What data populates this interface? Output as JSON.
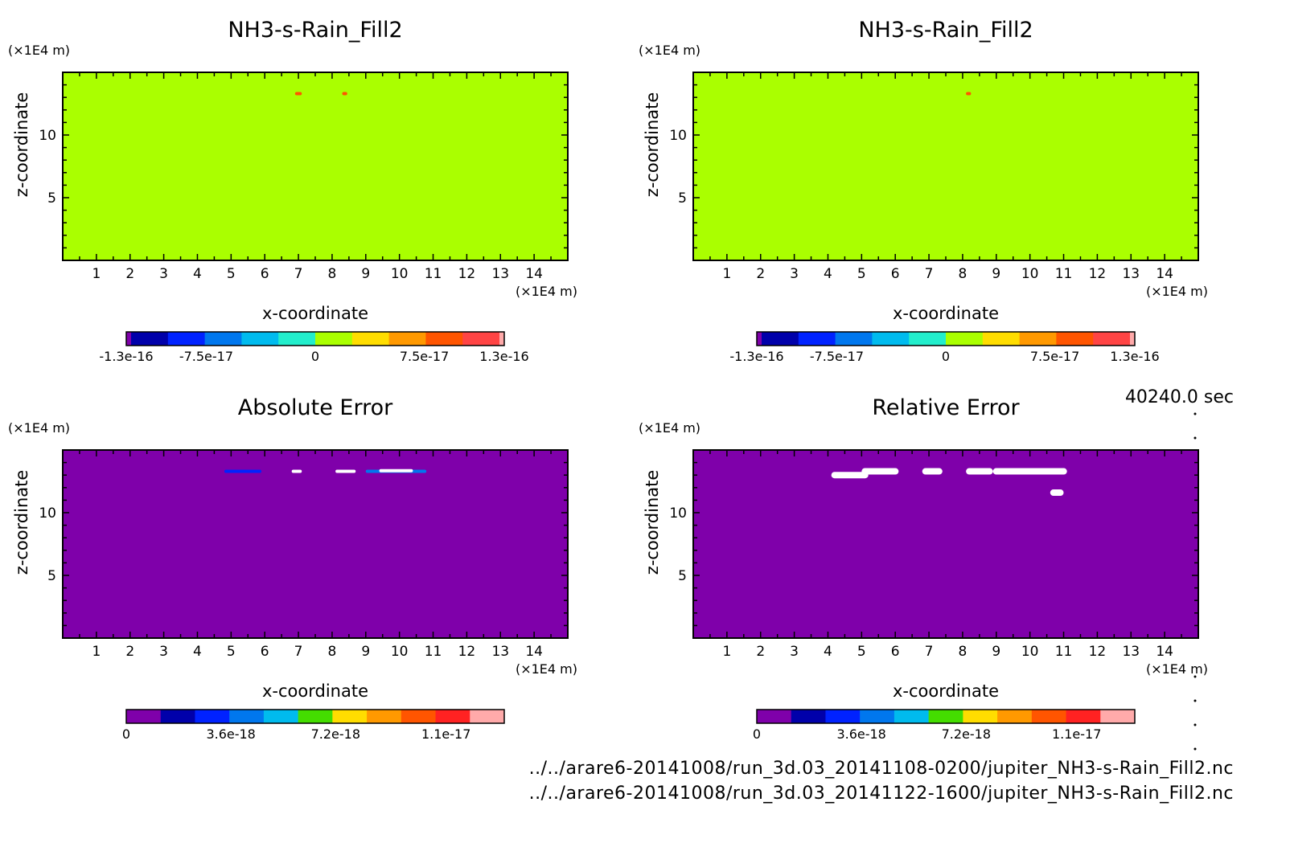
{
  "time_label": "40240.0 sec",
  "files": [
    "../../arare6-20141008/run_3d.03_20141108-0200/jupiter_NH3-s-Rain_Fill2.nc",
    "../../arare6-20141008/run_3d.03_20141122-1600/jupiter_NH3-s-Rain_Fill2.nc"
  ],
  "colors": {
    "purple": "#7f00aa",
    "navy": "#0000aa",
    "blue": "#0022ff",
    "azure": "#0077ee",
    "sky": "#00bbee",
    "cyan": "#22eecc",
    "lime": "#aaff00",
    "green": "#44dd00",
    "yellow": "#ffdd00",
    "orange": "#ff9900",
    "redorange": "#ff5500",
    "red": "#ff2222",
    "redpink": "#ff4444",
    "pink": "#ffaaaa",
    "white": "#ffffff"
  },
  "chart_data": [
    {
      "type": "heatmap",
      "title": "NH3-s-Rain_Fill2",
      "xlabel": "x-coordinate",
      "ylabel": "z-coordinate",
      "x_unit": "(×1E4 m)",
      "y_unit": "(×1E4 m)",
      "xlim": [
        0,
        15
      ],
      "ylim": [
        0,
        15
      ],
      "x_ticks": [
        1,
        2,
        3,
        4,
        5,
        6,
        7,
        8,
        9,
        10,
        11,
        12,
        13,
        14
      ],
      "y_ticks": [
        5,
        10
      ],
      "background_color": "#aaff00",
      "features": [
        {
          "x": [
            6.9,
            7.1
          ],
          "z": 13.3,
          "color": "#ff5500"
        },
        {
          "x": [
            8.3,
            8.45
          ],
          "z": 13.3,
          "color": "#ff5500"
        }
      ],
      "colorbar": {
        "colors": [
          "#7f00aa",
          "#0000aa",
          "#0022ff",
          "#0077ee",
          "#00bbee",
          "#22eecc",
          "#aaff00",
          "#ffdd00",
          "#ff9900",
          "#ff5500",
          "#ff4444",
          "#ffaaaa"
        ],
        "tick_labels": [
          "-1.3e-16",
          "-7.5e-17",
          "0",
          "7.5e-17",
          "1.3e-16"
        ],
        "tick_values": [
          -1.3e-16,
          -7.5e-17,
          0,
          7.5e-17,
          1.3e-16
        ],
        "range": [
          -1.3e-16,
          1.3e-16
        ]
      }
    },
    {
      "type": "heatmap",
      "title": "NH3-s-Rain_Fill2",
      "xlabel": "x-coordinate",
      "ylabel": "z-coordinate",
      "x_unit": "(×1E4 m)",
      "y_unit": "(×1E4 m)",
      "xlim": [
        0,
        15
      ],
      "ylim": [
        0,
        15
      ],
      "x_ticks": [
        1,
        2,
        3,
        4,
        5,
        6,
        7,
        8,
        9,
        10,
        11,
        12,
        13,
        14
      ],
      "y_ticks": [
        5,
        10
      ],
      "background_color": "#aaff00",
      "features": [
        {
          "x": [
            8.1,
            8.25
          ],
          "z": 13.3,
          "color": "#ff5500"
        }
      ],
      "colorbar": {
        "colors": [
          "#7f00aa",
          "#0000aa",
          "#0022ff",
          "#0077ee",
          "#00bbee",
          "#22eecc",
          "#aaff00",
          "#ffdd00",
          "#ff9900",
          "#ff5500",
          "#ff4444",
          "#ffaaaa"
        ],
        "tick_labels": [
          "-1.3e-16",
          "-7.5e-17",
          "0",
          "7.5e-17",
          "1.3e-16"
        ],
        "tick_values": [
          -1.3e-16,
          -7.5e-17,
          0,
          7.5e-17,
          1.3e-16
        ],
        "range": [
          -1.3e-16,
          1.3e-16
        ]
      }
    },
    {
      "type": "heatmap",
      "title": "Absolute Error",
      "xlabel": "x-coordinate",
      "ylabel": "z-coordinate",
      "x_unit": "(×1E4 m)",
      "y_unit": "(×1E4 m)",
      "xlim": [
        0,
        15
      ],
      "ylim": [
        0,
        15
      ],
      "x_ticks": [
        1,
        2,
        3,
        4,
        5,
        6,
        7,
        8,
        9,
        10,
        11,
        12,
        13,
        14
      ],
      "y_ticks": [
        5,
        10
      ],
      "background_color": "#7f00aa",
      "features": [
        {
          "x": [
            4.8,
            5.9
          ],
          "z": 13.3,
          "color": "#0022ff"
        },
        {
          "x": [
            6.8,
            7.1
          ],
          "z": 13.3,
          "color": "#ffffff"
        },
        {
          "x": [
            8.1,
            8.7
          ],
          "z": 13.3,
          "color": "#ffffff"
        },
        {
          "x": [
            9.0,
            10.8
          ],
          "z": 13.3,
          "color": "#0077ee"
        },
        {
          "x": [
            9.4,
            10.4
          ],
          "z": 13.35,
          "color": "#ffffff"
        }
      ],
      "colorbar": {
        "colors": [
          "#7f00aa",
          "#0000aa",
          "#0022ff",
          "#0077ee",
          "#00bbee",
          "#44dd00",
          "#ffdd00",
          "#ff9900",
          "#ff5500",
          "#ff2222",
          "#ffaaaa"
        ],
        "tick_labels": [
          "0",
          "3.6e-18",
          "7.2e-18",
          "1.1e-17"
        ],
        "tick_values": [
          0,
          3.6e-18,
          7.2e-18,
          1.1e-17
        ],
        "range": [
          0,
          1.3e-17
        ]
      }
    },
    {
      "type": "heatmap",
      "title": "Relative Error",
      "xlabel": "x-coordinate",
      "ylabel": "z-coordinate",
      "x_unit": "(×1E4 m)",
      "y_unit": "(×1E4 m)",
      "xlim": [
        0,
        15
      ],
      "ylim": [
        0,
        15
      ],
      "x_ticks": [
        1,
        2,
        3,
        4,
        5,
        6,
        7,
        8,
        9,
        10,
        11,
        12,
        13,
        14
      ],
      "y_ticks": [
        5,
        10
      ],
      "background_color": "#7f00aa",
      "features": [
        {
          "x": [
            4.1,
            5.2
          ],
          "z": 13.0,
          "color": "#ffffff"
        },
        {
          "x": [
            5.0,
            6.1
          ],
          "z": 13.3,
          "color": "#ffffff"
        },
        {
          "x": [
            6.8,
            7.4
          ],
          "z": 13.3,
          "color": "#ffffff"
        },
        {
          "x": [
            8.1,
            8.9
          ],
          "z": 13.3,
          "color": "#ffffff"
        },
        {
          "x": [
            8.9,
            11.1
          ],
          "z": 13.3,
          "color": "#ffffff"
        },
        {
          "x": [
            10.6,
            11.0
          ],
          "z": 11.6,
          "color": "#ffffff"
        }
      ],
      "colorbar": {
        "colors": [
          "#7f00aa",
          "#0000aa",
          "#0022ff",
          "#0077ee",
          "#00bbee",
          "#44dd00",
          "#ffdd00",
          "#ff9900",
          "#ff5500",
          "#ff2222",
          "#ffaaaa"
        ],
        "tick_labels": [
          "0",
          "3.6e-18",
          "7.2e-18",
          "1.1e-17"
        ],
        "tick_values": [
          0,
          3.6e-18,
          7.2e-18,
          1.1e-17
        ],
        "range": [
          0,
          1.3e-17
        ]
      }
    }
  ]
}
